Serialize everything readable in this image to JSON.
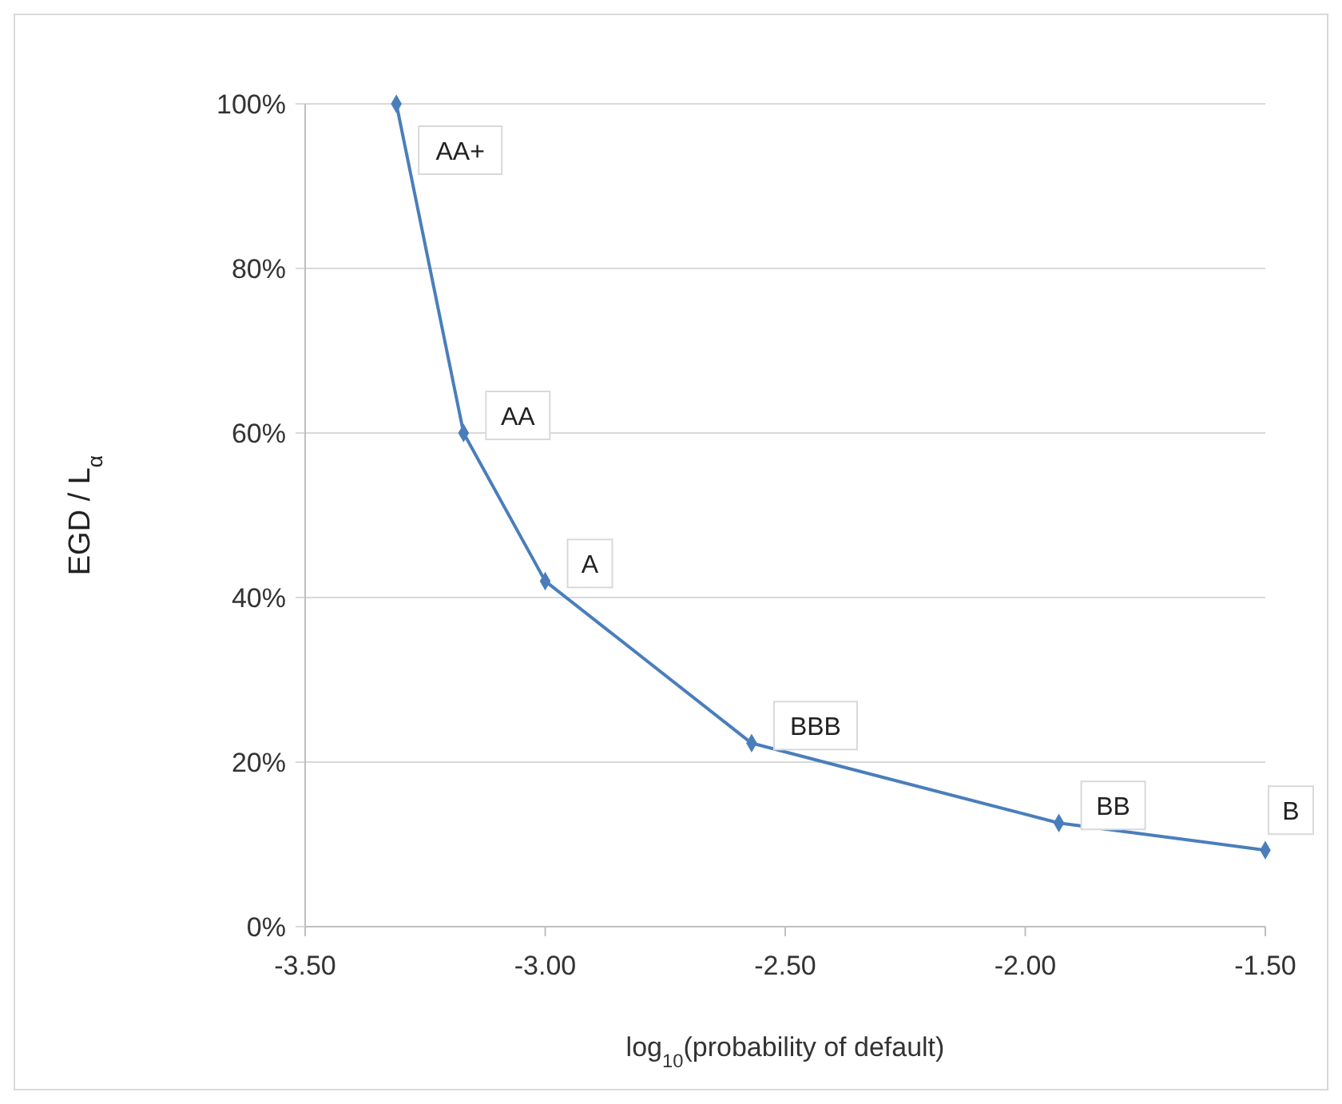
{
  "chart_data": {
    "type": "line",
    "xlabel": "log$_{10}$(probability of default)",
    "ylabel": "EGD / L$_{α}$",
    "x": [
      -3.31,
      -3.17,
      -3.0,
      -2.57,
      -1.93,
      -1.5
    ],
    "series": [
      {
        "color": "#4a7ebb",
        "values": [
          100,
          60,
          42,
          22.3,
          12.6,
          9.3
        ]
      }
    ],
    "xlim": [
      -3.5,
      -1.5
    ],
    "xticks": [
      {
        "value": -3.5,
        "label": "-3.50"
      },
      {
        "value": -3,
        "label": "-3.00"
      },
      {
        "value": -2.5,
        "label": "-2.50"
      },
      {
        "value": -2,
        "label": "-2.00"
      },
      {
        "value": -1.5,
        "label": "-1.50"
      }
    ],
    "ylim": [
      0,
      100
    ],
    "yticks": [
      {
        "value": 0,
        "label": "0%"
      },
      {
        "value": 20,
        "label": "20%"
      },
      {
        "value": 40,
        "label": "40%"
      },
      {
        "value": 60,
        "label": "60%"
      },
      {
        "value": 80,
        "label": "80%"
      },
      {
        "value": 100,
        "label": "100%"
      }
    ],
    "grid": "y",
    "marker": "diamond",
    "line_style": "solid",
    "annotations": [
      {
        "text": "AA+",
        "x": -3.31,
        "y": 100
      },
      {
        "text": "AA",
        "x": -3.17,
        "y": 60
      },
      {
        "text": "A",
        "x": -3.0,
        "y": 42
      },
      {
        "text": "BBB",
        "x": -2.57,
        "y": 22.3
      },
      {
        "text": "BB",
        "x": -1.93,
        "y": 12.6
      },
      {
        "text": "B",
        "x": -1.5,
        "y": 9.3
      }
    ]
  }
}
